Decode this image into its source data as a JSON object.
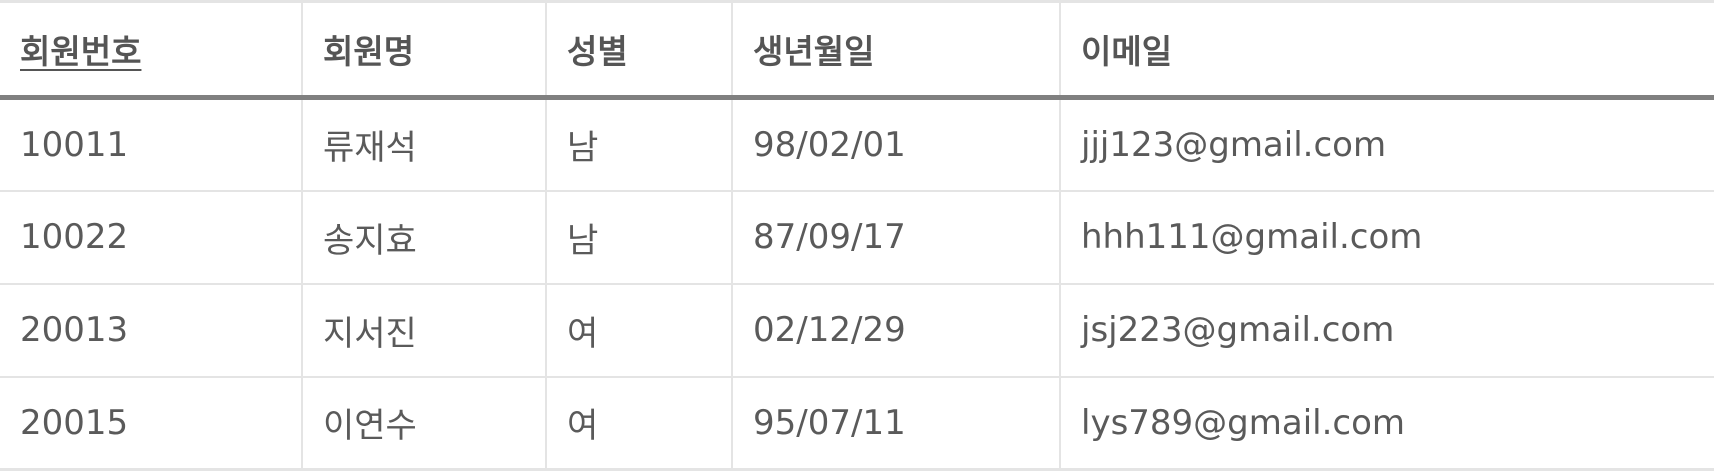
{
  "table": {
    "headers": [
      {
        "label": "회원번호",
        "sortable": true
      },
      {
        "label": "회원명",
        "sortable": false
      },
      {
        "label": "성별",
        "sortable": false
      },
      {
        "label": "생년월일",
        "sortable": false
      },
      {
        "label": "이메일",
        "sortable": false
      }
    ],
    "rows": [
      [
        "10011",
        "류재석",
        "남",
        "98/02/01",
        "jjj123@gmail.com"
      ],
      [
        "10022",
        "송지효",
        "남",
        "87/09/17",
        "hhh111@gmail.com"
      ],
      [
        "20013",
        "지서진",
        "여",
        "02/12/29",
        "jsj223@gmail.com"
      ],
      [
        "20015",
        "이연수",
        "여",
        "95/07/11",
        "lys789@gmail.com"
      ]
    ]
  },
  "colors": {
    "text": "#555555",
    "border": "#e4e4e4",
    "header_rule": "#808080"
  }
}
